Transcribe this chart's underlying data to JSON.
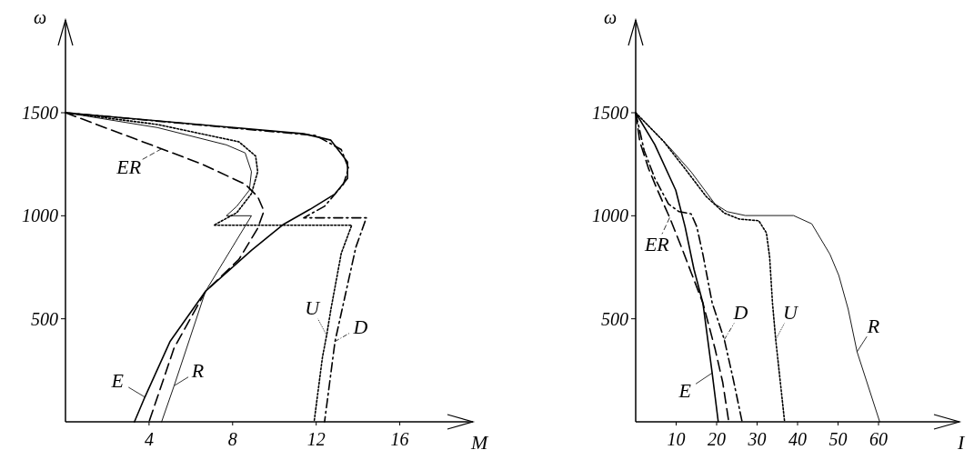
{
  "chart_data": [
    {
      "type": "line",
      "xlabel": "M",
      "ylabel": "ω",
      "xlim": [
        0,
        19.5
      ],
      "ylim": [
        0,
        1950
      ],
      "xticks": [
        4,
        8,
        12,
        16
      ],
      "yticks": [
        500,
        1000,
        1500
      ],
      "grid": false,
      "legend": "bottom",
      "series": [
        {
          "name": "E",
          "color": "#000000",
          "line_style": "solid",
          "x": [
            0,
            11.4,
            12.7,
            13.5,
            13.5,
            12.9,
            11.7,
            10.4,
            8.9,
            6.7,
            5.0,
            3.8,
            3.3
          ],
          "values": [
            1500,
            1398,
            1367,
            1261,
            1181,
            1106,
            1031,
            956,
            832,
            633,
            389,
            120,
            0
          ]
        },
        {
          "name": "R",
          "color": "#000000",
          "line_style": "solid",
          "x": [
            0,
            4.4,
            7.7,
            8.6,
            8.9,
            8.8,
            8.2,
            7.7,
            8.9,
            6.7,
            5.2,
            4.6
          ],
          "values": [
            1500,
            1428,
            1344,
            1305,
            1214,
            1124,
            1046,
            1000,
            1000,
            633,
            175,
            0
          ]
        },
        {
          "name": "U",
          "color": "#000000",
          "line_style": "dotted",
          "x": [
            0,
            4.4,
            8.3,
            9.1,
            9.2,
            8.9,
            8.2,
            7.1,
            13.7,
            13.2,
            12.7,
            12.5,
            12.3,
            11.9
          ],
          "values": [
            1500,
            1443,
            1359,
            1290,
            1214,
            1107,
            1015,
            954,
            954,
            818,
            544,
            420,
            314,
            0
          ]
        },
        {
          "name": "D",
          "color": "#000000",
          "line_style": "dashdot",
          "x": [
            0,
            12.0,
            13.2,
            13.55,
            13.3,
            12.4,
            11.4,
            14.4,
            13.9,
            13.5,
            12.9,
            12.4
          ],
          "values": [
            1500,
            1389,
            1321,
            1230,
            1153,
            1046,
            990,
            990,
            848,
            665,
            390,
            0
          ]
        },
        {
          "name": "ER",
          "color": "#000000",
          "line_style": "dashed",
          "x": [
            0,
            2.7,
            4.6,
            6.5,
            8.6,
            9.2,
            9.5,
            9.2,
            8.3,
            6.7,
            5.2,
            4.0
          ],
          "values": [
            1500,
            1397,
            1325,
            1252,
            1153,
            1093,
            1023,
            939,
            788,
            633,
            359,
            0
          ]
        }
      ]
    },
    {
      "type": "line",
      "xlabel": "I",
      "ylabel": "ω",
      "xlim": [
        0,
        80
      ],
      "ylim": [
        0,
        1950
      ],
      "xticks": [
        10,
        20,
        30,
        40,
        50,
        60
      ],
      "yticks": [
        500,
        1000,
        1500
      ],
      "grid": false,
      "legend": "left",
      "series": [
        {
          "name": "E",
          "color": "#000000",
          "line_style": "solid",
          "x": [
            0,
            4.7,
            9.9,
            12.2,
            14.4,
            16.6,
            18.9,
            20.4
          ],
          "values": [
            1500,
            1346,
            1124,
            947,
            740,
            577,
            237,
            0
          ]
        },
        {
          "name": "R",
          "color": "#000000",
          "line_style": "solid",
          "x": [
            0,
            8.4,
            13.7,
            19.6,
            22.6,
            27.1,
            39,
            43.5,
            48,
            50.2,
            52.5,
            54.7,
            60.3
          ],
          "values": [
            1500,
            1331,
            1213,
            1057,
            1020,
            1001,
            1001,
            961,
            813,
            710,
            547,
            340,
            0
          ]
        },
        {
          "name": "U",
          "color": "#000000",
          "line_style": "dotted",
          "x": [
            0,
            6.9,
            12.2,
            17.4,
            21.9,
            25.6,
            30.4,
            32.3,
            33.1,
            33.8,
            34.6,
            36.8
          ],
          "values": [
            1500,
            1361,
            1228,
            1094,
            1013,
            984,
            976,
            917,
            799,
            577,
            399,
            0
          ]
        },
        {
          "name": "D",
          "color": "#000000",
          "line_style": "dashdot",
          "x": [
            0,
            2.1,
            4.7,
            8.1,
            10.7,
            13.7,
            15.1,
            16.6,
            18.9,
            21.9,
            24.1,
            26.3
          ],
          "values": [
            1500,
            1316,
            1183,
            1057,
            1020,
            1009,
            947,
            813,
            577,
            399,
            207,
            0
          ]
        },
        {
          "name": "ER",
          "color": "#000000",
          "line_style": "dashed",
          "x": [
            0,
            1.0,
            3.2,
            5.4,
            8.4,
            11.4,
            13.7,
            16.6,
            19.6,
            21.5,
            23.0
          ],
          "values": [
            1500,
            1361,
            1228,
            1124,
            991,
            843,
            725,
            577,
            355,
            192,
            0
          ]
        }
      ]
    }
  ]
}
